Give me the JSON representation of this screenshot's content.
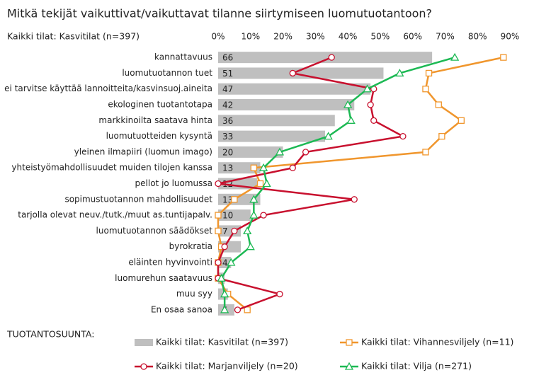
{
  "chart_data": {
    "type": "bar",
    "title": "Mitkä tekijät vaikuttivat/vaikuttavat tilanne siirtymiseen luomutuotantoon?",
    "subtitle": "Kaikki tilat: Kasvitilat (n=397)",
    "legend_title": "TUOTANTOSUUNTA:",
    "legend": "bottom",
    "categories": [
      "kannattavuus",
      "luomutuotannon tuet",
      "ei tarvitse käyttää lannoitteita/kasvinsuoj.aineita",
      "ekologinen tuotantotapa",
      "markkinoilta saatava hinta",
      "luomutuotteiden kysyntä",
      "yleinen ilmapiiri (luomun imago)",
      "yhteistyömahdollisuudet muiden tilojen kanssa",
      "pellot jo luomussa",
      "sopimustuotannon mahdollisuudet",
      "tarjolla olevat neuv./tutk./muut as.tuntijapalv.",
      "luomutuotannon säädökset",
      "byrokratia",
      "eläinten hyvinvointi",
      "luomurehun saatavuus",
      "muu syy",
      "En osaa sanoa"
    ],
    "xlim": [
      0,
      90
    ],
    "xticks": [
      {
        "value": 0,
        "label": "0%"
      },
      {
        "value": 10,
        "label": "10%"
      },
      {
        "value": 20,
        "label": "20%"
      },
      {
        "value": 30,
        "label": "30%"
      },
      {
        "value": 40,
        "label": "40%"
      },
      {
        "value": 50,
        "label": "50%"
      },
      {
        "value": 60,
        "label": "60%"
      },
      {
        "value": 70,
        "label": "70%"
      },
      {
        "value": 80,
        "label": "80%"
      },
      {
        "value": 90,
        "label": "90%"
      }
    ],
    "series": [
      {
        "name": "Kaikki tilat: Kasvitilat (n=397)",
        "type": "bar",
        "color": "#bfbfbf",
        "values": [
          66,
          51,
          47,
          42,
          36,
          33,
          20,
          13,
          12,
          13,
          10,
          7,
          7,
          4,
          2,
          3,
          5
        ],
        "value_labels": [
          "66",
          "51",
          "47",
          "42",
          "36",
          "33",
          "20",
          "13",
          "12",
          "13",
          "10",
          "7",
          null,
          "4",
          null,
          "3",
          "5"
        ]
      },
      {
        "name": "Kaikki tilat: Vihannesviljely (n=11)",
        "type": "line",
        "marker": "square",
        "color": "#f0962d",
        "values": [
          88,
          65,
          64,
          68,
          75,
          69,
          64,
          11,
          13,
          5,
          0,
          0,
          1,
          0,
          0,
          3,
          9
        ]
      },
      {
        "name": "Kaikki tilat: Marjanviljely (n=20)",
        "type": "line",
        "marker": "circle",
        "color": "#c8102e",
        "values": [
          35,
          23,
          48,
          47,
          48,
          57,
          27,
          23,
          0,
          42,
          14,
          5,
          2,
          0,
          0,
          19,
          6
        ]
      },
      {
        "name": "Kaikki tilat: Vilja (n=271)",
        "type": "line",
        "marker": "triangle",
        "color": "#1db954",
        "values": [
          73,
          56,
          46,
          40,
          41,
          34,
          19,
          14,
          15,
          11,
          11,
          9,
          10,
          4,
          1,
          2,
          2
        ]
      }
    ]
  }
}
